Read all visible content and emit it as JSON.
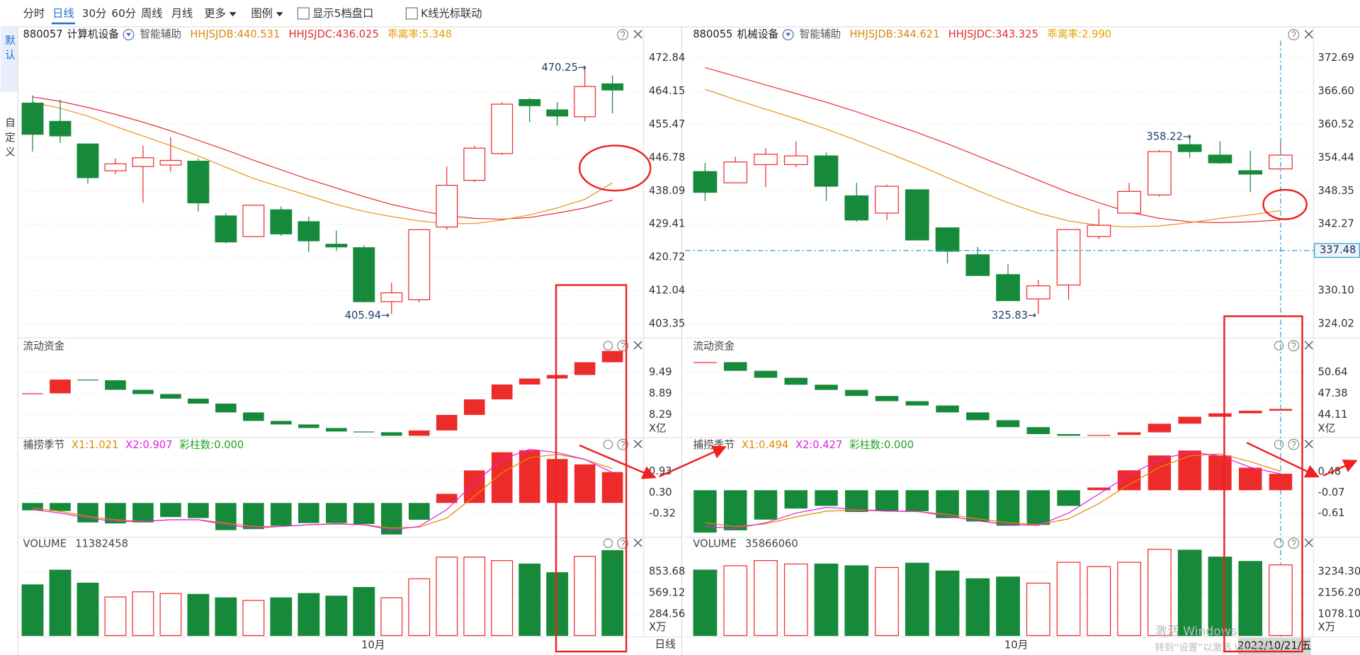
{
  "toolbar": {
    "tabs": [
      "分时",
      "日线",
      "30分",
      "60分",
      "周线",
      "月线"
    ],
    "menus": [
      "更多",
      "图例"
    ],
    "checkboxes": [
      "显示5档盘口",
      "K线光标联动"
    ]
  },
  "sidebar": {
    "default": "默认",
    "custom": "自定义"
  },
  "colors": {
    "up": "#ee2b2b",
    "down": "#168a3a",
    "ma1": "#e8333a",
    "ma2": "#e99220",
    "x1": "#e08a00",
    "x2": "#e020e0",
    "count": "#22a022"
  },
  "panels": [
    {
      "code": "880057",
      "name": "计算机设备",
      "assist": "智能辅助",
      "ind1": "HHJSJDB:440.531",
      "ind2": "HHJSJDC:436.025",
      "ind3": "乖离率:5.348",
      "price": {
        "ylim": [
          399.73,
          477.37
        ],
        "yticks": [
          472.84,
          464.15,
          455.47,
          446.78,
          438.09,
          429.41,
          420.72,
          412.04,
          403.35
        ],
        "candles": {
          "open": [
            461.07,
            456.3,
            450.4,
            443.4,
            444.5,
            444.9,
            445.9,
            431.6,
            426.2,
            433.2,
            430.1,
            424.2,
            423.3,
            409.2,
            409.7,
            428.7,
            440.9,
            447.9,
            462.0,
            459.3,
            457.5,
            466.1
          ],
          "high": [
            463.1,
            462.0,
            450.4,
            446.6,
            450.0,
            452.2,
            446.6,
            432.3,
            434.4,
            434.1,
            431.4,
            427.8,
            423.9,
            414.2,
            428.0,
            444.5,
            449.98,
            461.3,
            462.4,
            461.3,
            470.25,
            468.3
          ],
          "low": [
            448.4,
            450.7,
            440.0,
            442.5,
            435.0,
            443.2,
            432.8,
            424.4,
            426.2,
            426.4,
            422.1,
            422.4,
            409.0,
            405.94,
            409.0,
            428.0,
            440.5,
            447.5,
            456.1,
            455.2,
            456.3,
            458.4
          ],
          "close": [
            452.92,
            452.5,
            441.6,
            445.2,
            446.8,
            446.1,
            435.0,
            424.8,
            434.4,
            426.9,
            425.1,
            423.5,
            409.2,
            411.5,
            428.0,
            439.6,
            449.3,
            460.8,
            460.4,
            457.7,
            465.4,
            464.5
          ]
        },
        "ma1": [
          462.65,
          461.52,
          459.94,
          458.13,
          456.09,
          453.83,
          451.34,
          448.85,
          446.13,
          443.64,
          441.15,
          438.89,
          436.63,
          434.59,
          433.0,
          431.64,
          430.97,
          430.74,
          431.19,
          432.32,
          433.68,
          435.72
        ],
        "ma2": [
          461.3,
          459.71,
          457.67,
          454.96,
          452.47,
          449.98,
          447.26,
          444.32,
          441.38,
          439.11,
          436.85,
          434.59,
          432.78,
          431.42,
          430.29,
          429.61,
          429.61,
          430.51,
          431.87,
          433.68,
          435.95,
          440.25
        ],
        "high_label": "470.25→",
        "low_label": "405.94→"
      },
      "flow": {
        "title": "流动资金",
        "unit": "X亿",
        "ylim": [
          7.65,
          10.42
        ],
        "yticks": [
          9.49,
          8.89,
          8.29
        ],
        "values": [
          8.9,
          9.29,
          9.27,
          9.0,
          8.88,
          8.75,
          8.61,
          8.36,
          8.12,
          8.02,
          7.92,
          7.82,
          7.8,
          7.7,
          7.85,
          8.29,
          8.73,
          9.15,
          9.32,
          9.42,
          9.78,
          10.1
        ]
      },
      "season": {
        "title": "捕捞季节",
        "x1_label": "X1:1.021",
        "x2_label": "X2:0.907",
        "count_label": "彩柱数:0.000",
        "ylim": [
          -1.02,
          1.95
        ],
        "yticks": [
          0.93,
          {
            "value": 0.3,
            "label": "0.30"
          },
          -0.32
        ],
        "values": [
          -0.22,
          -0.24,
          -0.58,
          -0.61,
          -0.58,
          -0.42,
          -0.45,
          -0.81,
          -0.78,
          -0.68,
          -0.6,
          -0.6,
          -0.63,
          -0.94,
          -0.5,
          0.27,
          0.97,
          1.51,
          1.57,
          1.31,
          1.15,
          0.92
        ],
        "x1": [
          -0.15,
          -0.25,
          -0.4,
          -0.5,
          -0.55,
          -0.5,
          -0.5,
          -0.6,
          -0.7,
          -0.7,
          -0.65,
          -0.63,
          -0.65,
          -0.75,
          -0.72,
          -0.45,
          0.2,
          0.9,
          1.35,
          1.45,
          1.3,
          1.021
        ],
        "x2": [
          -0.2,
          -0.3,
          -0.45,
          -0.55,
          -0.55,
          -0.5,
          -0.5,
          -0.65,
          -0.75,
          -0.7,
          -0.65,
          -0.62,
          -0.65,
          -0.8,
          -0.7,
          -0.2,
          0.6,
          1.3,
          1.6,
          1.5,
          1.3,
          0.907
        ]
      },
      "volume": {
        "title": "VOLUME",
        "total": 11382458,
        "unit": "X万",
        "ylim": [
          0,
          1318
        ],
        "yticks": [
          853.68,
          569.12,
          284.56
        ],
        "values": [
          679,
          876,
          702,
          517,
          586,
          563,
          551,
          505,
          470,
          505,
          563,
          528,
          644,
          505,
          760,
          1051,
          1051,
          1004,
          958,
          842,
          1062,
          1138.25
        ]
      },
      "x_label": "10月",
      "footer": "日线"
    },
    {
      "code": "880055",
      "name": "机械设备",
      "assist": "智能辅助",
      "ind1": "HHJSJDB:344.621",
      "ind2": "HHJSJDC:343.325",
      "ind3": "乖离率:2.990",
      "price": {
        "ylim": [
          321.48,
          375.86
        ],
        "yticks": [
          372.69,
          {
            "value": 366.6,
            "label": "366.60"
          },
          360.52,
          354.44,
          348.35,
          342.27,
          {
            "value": 330.1,
            "label": "330.10"
          },
          324.02
        ],
        "cursor": 337.48,
        "candles": {
          "open": [
            351.92,
            349.86,
            353.19,
            353.19,
            354.78,
            347.48,
            344.31,
            348.59,
            341.62,
            336.7,
            333.06,
            328.62,
            331.16,
            340.03,
            344.31,
            347.64,
            356.84,
            354.93,
            352.08,
            352.4
          ],
          "high": [
            353.51,
            354.62,
            356.2,
            357.47,
            355.41,
            349.86,
            349.54,
            348.59,
            341.62,
            338.13,
            334.96,
            332.11,
            341.3,
            345.11,
            349.86,
            355.89,
            358.22,
            357.47,
            355.73,
            357.63
          ],
          "low": [
            346.53,
            349.86,
            349.07,
            352.72,
            346.53,
            342.73,
            343.05,
            339.4,
            335.12,
            332.9,
            328.14,
            325.83,
            328.46,
            339.56,
            344.31,
            347.33,
            354.46,
            353.35,
            348.12,
            352.4
          ],
          "close": [
            348.12,
            353.67,
            355.09,
            354.78,
            349.23,
            343.05,
            349.23,
            339.4,
            337.34,
            332.9,
            328.3,
            331.0,
            341.3,
            342.09,
            348.28,
            355.57,
            355.57,
            353.51,
            351.45,
            354.93
          ]
        },
        "ma1": [
          370.95,
          369.36,
          367.78,
          366.19,
          364.61,
          362.86,
          360.96,
          359.06,
          357.0,
          354.78,
          352.56,
          350.34,
          348.12,
          346.22,
          344.47,
          343.36,
          342.73,
          342.57,
          342.73,
          343.05
        ],
        "ma2": [
          366.98,
          365.08,
          363.34,
          361.59,
          359.69,
          357.63,
          355.41,
          353.19,
          350.81,
          348.43,
          346.22,
          344.31,
          342.89,
          342.09,
          341.78,
          341.94,
          342.57,
          343.36,
          343.99,
          344.78
        ],
        "high_label": "358.22→",
        "low_label": "325.83→"
      },
      "flow": {
        "title": "流动资金",
        "unit": "X亿",
        "ylim": [
          40.64,
          55.71
        ],
        "yticks": [
          50.64,
          47.38,
          44.11
        ],
        "values": [
          52.24,
          50.91,
          49.84,
          48.77,
          47.97,
          47.04,
          46.24,
          45.57,
          44.51,
          43.31,
          42.24,
          41.17,
          40.91,
          41.04,
          41.44,
          42.77,
          43.84,
          44.37,
          44.77,
          45.04
        ]
      },
      "season": {
        "title": "捕捞季节",
        "x1_label": "X1:0.494",
        "x2_label": "X2:0.427",
        "count_label": "彩柱数:0.000",
        "ylim": [
          -1.23,
          1.38
        ],
        "yticks": [
          0.48,
          -0.07,
          -0.61
        ],
        "values": [
          -1.11,
          -1.05,
          -0.77,
          -0.48,
          -0.41,
          -0.57,
          -0.55,
          -0.55,
          -0.73,
          -0.82,
          -0.93,
          -0.91,
          -0.41,
          0.07,
          0.52,
          0.91,
          1.04,
          0.91,
          0.59,
          0.43
        ],
        "x1": [
          -0.85,
          -0.95,
          -0.88,
          -0.7,
          -0.55,
          -0.52,
          -0.55,
          -0.56,
          -0.63,
          -0.75,
          -0.85,
          -0.9,
          -0.75,
          -0.35,
          0.15,
          0.6,
          0.9,
          0.95,
          0.75,
          0.494
        ],
        "x2": [
          -0.95,
          -1.0,
          -0.85,
          -0.6,
          -0.45,
          -0.5,
          -0.55,
          -0.55,
          -0.68,
          -0.8,
          -0.9,
          -0.92,
          -0.6,
          -0.1,
          0.4,
          0.8,
          1.0,
          0.9,
          0.6,
          0.427
        ]
      },
      "volume": {
        "title": "VOLUME",
        "total": 35866060,
        "unit": "X万",
        "ylim": [
          0,
          4994
        ],
        "yticks": [
          {
            "value": 3234.3,
            "label": "3234.30"
          },
          {
            "value": 2156.2,
            "label": "2156.20"
          },
          {
            "value": 1078.1,
            "label": "1078.10"
          }
        ],
        "values": [
          3322,
          3542,
          3806,
          3630,
          3630,
          3542,
          3454,
          3674,
          3278,
          2882,
          2970,
          2662,
          3718,
          3498,
          3718,
          4378,
          4334,
          3982,
          3762,
          3586.61
        ]
      },
      "x_label": "10月",
      "footer": "2022/10/21/五"
    }
  ],
  "watermark": {
    "line1": "激活 Windows",
    "line2": "转到“设置”以激活 Windows。"
  }
}
